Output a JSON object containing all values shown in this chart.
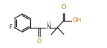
{
  "background_color": "#ffffff",
  "bond_color": "#1a1a1a",
  "atom_colors": {
    "F": "#1a1a1a",
    "O": "#cc7700",
    "N": "#1a1a1a",
    "H": "#1a1a1a"
  },
  "figsize": [
    1.53,
    0.69
  ],
  "dpi": 100,
  "lw": 0.9,
  "fontsize": 6.2
}
